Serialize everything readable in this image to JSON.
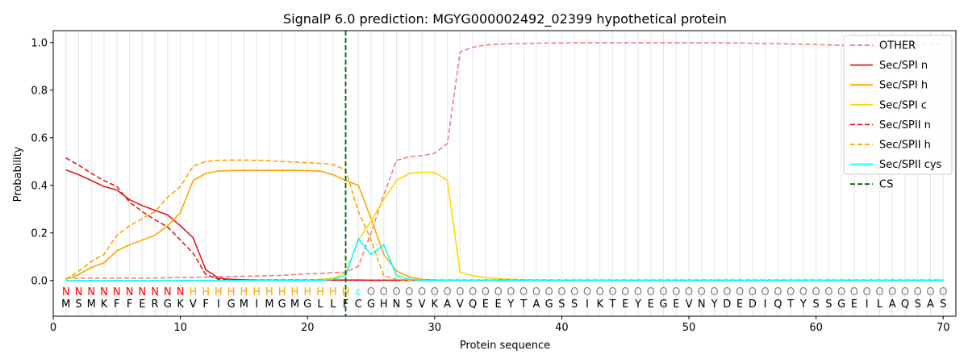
{
  "chart_data": {
    "type": "line",
    "title": "SignalP 6.0 prediction: MGYG000002492_02399 hypothetical protein",
    "xlabel": "Protein sequence",
    "ylabel": "Probability",
    "xlim": [
      0,
      71
    ],
    "ylim": [
      -0.15,
      1.05
    ],
    "x_ticks": [
      0,
      10,
      20,
      30,
      40,
      50,
      60,
      70
    ],
    "y_ticks": [
      0.0,
      0.2,
      0.4,
      0.6,
      0.8,
      1.0
    ],
    "x_tick_labels": [
      "0",
      "10",
      "20",
      "30",
      "40",
      "50",
      "60",
      "70"
    ],
    "y_tick_labels": [
      "0.0",
      "0.2",
      "0.4",
      "0.6",
      "0.8",
      "1.0"
    ],
    "grid": "vertical lines at each residue",
    "legend_position": "top-right",
    "cleavage_site": 23,
    "sequence": [
      "M",
      "S",
      "M",
      "K",
      "F",
      "F",
      "E",
      "R",
      "G",
      "K",
      "V",
      "F",
      "I",
      "G",
      "M",
      "I",
      "M",
      "G",
      "M",
      "G",
      "L",
      "L",
      "F",
      "C",
      "G",
      "H",
      "N",
      "S",
      "V",
      "K",
      "A",
      "V",
      "Q",
      "E",
      "E",
      "Y",
      "T",
      "A",
      "G",
      "S",
      "S",
      "I",
      "K",
      "T",
      "E",
      "Y",
      "E",
      "G",
      "E",
      "V",
      "N",
      "Y",
      "D",
      "E",
      "D",
      "I",
      "Q",
      "T",
      "Y",
      "S",
      "S",
      "G",
      "E",
      "I",
      "L",
      "A",
      "Q",
      "S",
      "A",
      "S"
    ],
    "region_labels": [
      "N",
      "N",
      "N",
      "N",
      "N",
      "N",
      "N",
      "N",
      "N",
      "N",
      "H",
      "H",
      "H",
      "H",
      "H",
      "H",
      "H",
      "H",
      "H",
      "H",
      "H",
      "H",
      "H",
      "c",
      "O",
      "O",
      "O",
      "O",
      "O",
      "O",
      "O",
      "O",
      "O",
      "O",
      "O",
      "O",
      "O",
      "O",
      "O",
      "O",
      "O",
      "O",
      "O",
      "O",
      "O",
      "O",
      "O",
      "O",
      "O",
      "O",
      "O",
      "O",
      "O",
      "O",
      "O",
      "O",
      "O",
      "O",
      "O",
      "O",
      "O",
      "O",
      "O",
      "O",
      "O",
      "O",
      "O",
      "O",
      "O",
      "O"
    ],
    "region_colors": {
      "N": "#ff0000",
      "H": "#ffa500",
      "c": "#00ffff",
      "O": "#808080"
    },
    "series": [
      {
        "name": "OTHER",
        "color": "#f08080",
        "dash": "dashed",
        "values": [
          0.01,
          0.01,
          0.01,
          0.01,
          0.01,
          0.01,
          0.01,
          0.01,
          0.012,
          0.013,
          0.013,
          0.015,
          0.016,
          0.017,
          0.018,
          0.019,
          0.02,
          0.022,
          0.025,
          0.028,
          0.03,
          0.033,
          0.035,
          0.06,
          0.2,
          0.36,
          0.505,
          0.52,
          0.525,
          0.535,
          0.575,
          0.96,
          0.98,
          0.99,
          0.993,
          0.995,
          0.996,
          0.997,
          0.998,
          0.998,
          0.999,
          0.999,
          0.999,
          0.999,
          0.999,
          0.999,
          0.999,
          0.999,
          0.999,
          0.999,
          0.999,
          0.999,
          0.998,
          0.998,
          0.997,
          0.996,
          0.995,
          0.994,
          0.993,
          0.992,
          0.99,
          0.988,
          0.986,
          0.985,
          0.985,
          0.986,
          0.988,
          0.99,
          0.993,
          0.996
        ]
      },
      {
        "name": "Sec/SPI n",
        "color": "#e31a1c",
        "dash": "solid",
        "values": [
          0.465,
          0.445,
          0.42,
          0.395,
          0.38,
          0.34,
          0.315,
          0.295,
          0.275,
          0.23,
          0.18,
          0.045,
          0.01,
          0.005,
          0.003,
          0.002,
          0.002,
          0.002,
          0.002,
          0.002,
          0.002,
          0.002,
          0.002,
          0.002,
          0.001,
          0.001,
          0.001,
          0.001,
          0.001,
          0.001,
          0.001,
          0.001,
          0.001,
          0.001,
          0.001,
          0.001,
          0.001,
          0.001,
          0.001,
          0.001,
          0.001,
          0.001,
          0.001,
          0.001,
          0.001,
          0.001,
          0.001,
          0.001,
          0.001,
          0.001,
          0.001,
          0.001,
          0.001,
          0.001,
          0.001,
          0.001,
          0.001,
          0.001,
          0.001,
          0.001,
          0.001,
          0.001,
          0.001,
          0.001,
          0.001,
          0.001,
          0.001,
          0.001,
          0.001,
          0.001
        ]
      },
      {
        "name": "Sec/SPI h",
        "color": "#ffa500",
        "dash": "solid",
        "values": [
          0.005,
          0.025,
          0.055,
          0.075,
          0.125,
          0.15,
          0.17,
          0.19,
          0.23,
          0.285,
          0.42,
          0.45,
          0.46,
          0.462,
          0.463,
          0.463,
          0.463,
          0.463,
          0.463,
          0.462,
          0.46,
          0.445,
          0.42,
          0.4,
          0.26,
          0.11,
          0.04,
          0.015,
          0.005,
          0.002,
          0.001,
          0.001,
          0.001,
          0.001,
          0.001,
          0.001,
          0.001,
          0.001,
          0.001,
          0.001,
          0.001,
          0.001,
          0.001,
          0.001,
          0.001,
          0.001,
          0.001,
          0.001,
          0.001,
          0.001,
          0.001,
          0.001,
          0.001,
          0.001,
          0.001,
          0.001,
          0.001,
          0.001,
          0.001,
          0.001,
          0.001,
          0.001,
          0.001,
          0.001,
          0.001,
          0.001,
          0.001,
          0.001,
          0.001,
          0.001
        ]
      },
      {
        "name": "Sec/SPI c",
        "color": "#ffd700",
        "dash": "solid",
        "values": [
          0.0,
          0.0,
          0.0,
          0.0,
          0.0,
          0.0,
          0.0,
          0.0,
          0.0,
          0.0,
          0.0,
          0.0,
          0.0,
          0.0,
          0.0,
          0.001,
          0.001,
          0.002,
          0.002,
          0.003,
          0.005,
          0.01,
          0.03,
          0.17,
          0.25,
          0.34,
          0.42,
          0.45,
          0.455,
          0.455,
          0.42,
          0.035,
          0.02,
          0.012,
          0.008,
          0.005,
          0.003,
          0.002,
          0.002,
          0.001,
          0.001,
          0.001,
          0.001,
          0.001,
          0.001,
          0.001,
          0.001,
          0.001,
          0.001,
          0.001,
          0.001,
          0.001,
          0.001,
          0.001,
          0.001,
          0.001,
          0.001,
          0.001,
          0.001,
          0.001,
          0.001,
          0.001,
          0.001,
          0.001,
          0.001,
          0.001,
          0.001,
          0.001,
          0.001,
          0.001
        ]
      },
      {
        "name": "Sec/SPII n",
        "color": "#e31a1c",
        "dash": "dashed",
        "values": [
          0.515,
          0.485,
          0.45,
          0.42,
          0.395,
          0.33,
          0.29,
          0.255,
          0.225,
          0.17,
          0.115,
          0.025,
          0.005,
          0.002,
          0.001,
          0.001,
          0.001,
          0.001,
          0.001,
          0.001,
          0.001,
          0.001,
          0.001,
          0.001,
          0.001,
          0.001,
          0.001,
          0.001,
          0.001,
          0.001,
          0.001,
          0.001,
          0.001,
          0.001,
          0.001,
          0.001,
          0.001,
          0.001,
          0.001,
          0.001,
          0.001,
          0.001,
          0.001,
          0.001,
          0.001,
          0.001,
          0.001,
          0.001,
          0.001,
          0.001,
          0.001,
          0.001,
          0.001,
          0.001,
          0.001,
          0.001,
          0.001,
          0.001,
          0.001,
          0.001,
          0.001,
          0.001,
          0.001,
          0.001,
          0.001,
          0.001,
          0.001,
          0.001,
          0.001,
          0.001
        ]
      },
      {
        "name": "Sec/SPII h",
        "color": "#ffa500",
        "dash": "dashed",
        "values": [
          0.005,
          0.04,
          0.08,
          0.11,
          0.19,
          0.23,
          0.26,
          0.29,
          0.35,
          0.395,
          0.48,
          0.5,
          0.505,
          0.506,
          0.506,
          0.505,
          0.503,
          0.5,
          0.498,
          0.495,
          0.492,
          0.488,
          0.465,
          0.29,
          0.17,
          0.02,
          0.005,
          0.002,
          0.001,
          0.001,
          0.001,
          0.001,
          0.001,
          0.001,
          0.001,
          0.001,
          0.001,
          0.001,
          0.001,
          0.001,
          0.001,
          0.001,
          0.001,
          0.001,
          0.001,
          0.001,
          0.001,
          0.001,
          0.001,
          0.001,
          0.001,
          0.001,
          0.001,
          0.001,
          0.001,
          0.001,
          0.001,
          0.001,
          0.001,
          0.001,
          0.001,
          0.001,
          0.001,
          0.001,
          0.001,
          0.001,
          0.001,
          0.001,
          0.001,
          0.001
        ]
      },
      {
        "name": "Sec/SPII cys",
        "color": "#00ffff",
        "dash": "solid",
        "values": [
          0.0,
          0.0,
          0.0,
          0.0,
          0.0,
          0.0,
          0.0,
          0.0,
          0.0,
          0.0,
          0.0,
          0.0,
          0.0,
          0.0,
          0.0,
          0.0,
          0.0,
          0.0,
          0.0,
          0.0,
          0.0,
          0.005,
          0.02,
          0.175,
          0.11,
          0.15,
          0.02,
          0.005,
          0.001,
          0.0,
          0.0,
          0.0,
          0.0,
          0.0,
          0.0,
          0.0,
          0.0,
          0.0,
          0.0,
          0.0,
          0.0,
          0.0,
          0.0,
          0.0,
          0.0,
          0.0,
          0.0,
          0.0,
          0.0,
          0.0,
          0.0,
          0.0,
          0.0,
          0.0,
          0.0,
          0.0,
          0.0,
          0.0,
          0.0,
          0.0,
          0.0,
          0.0,
          0.0,
          0.0,
          0.0,
          0.0,
          0.0,
          0.0,
          0.0,
          0.0
        ]
      },
      {
        "name": "CS",
        "color": "#006400",
        "dash": "dashed",
        "vertical_at": 23
      }
    ]
  }
}
